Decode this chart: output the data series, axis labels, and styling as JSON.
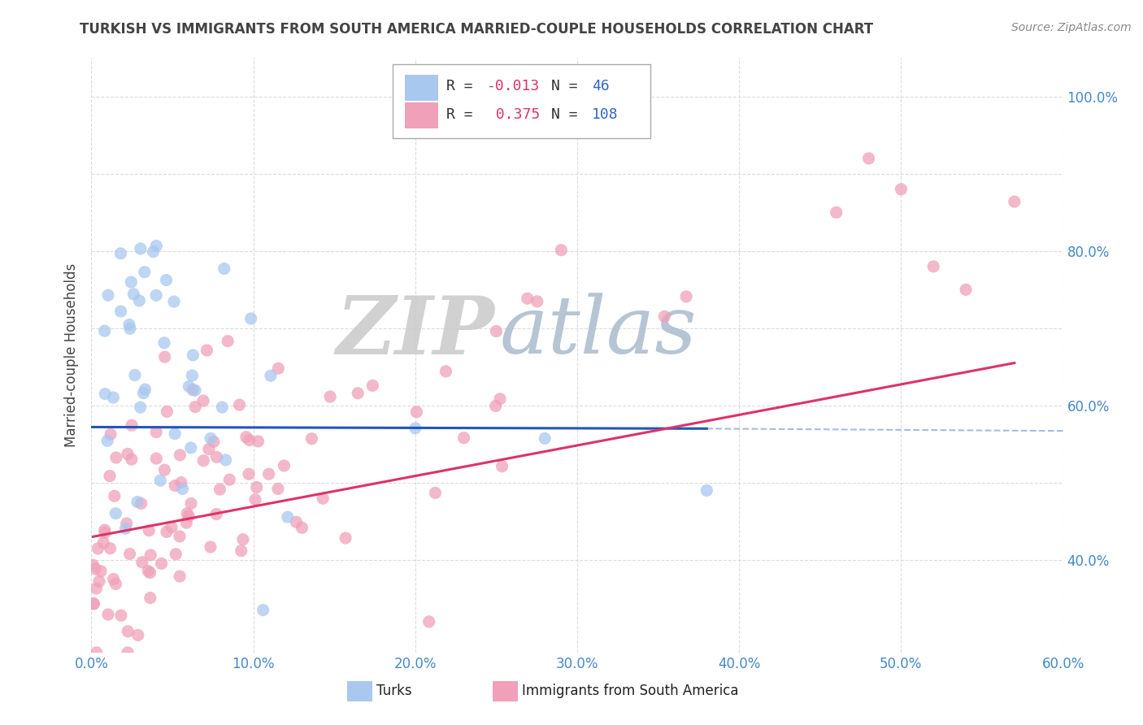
{
  "title": "TURKISH VS IMMIGRANTS FROM SOUTH AMERICA MARRIED-COUPLE HOUSEHOLDS CORRELATION CHART",
  "source": "Source: ZipAtlas.com",
  "ylabel": "Married-couple Households",
  "xlim": [
    0.0,
    0.6
  ],
  "ylim": [
    0.28,
    1.05
  ],
  "legend_labels": [
    "Turks",
    "Immigrants from South America"
  ],
  "blue_R": -0.013,
  "blue_N": 46,
  "pink_R": 0.375,
  "pink_N": 108,
  "blue_scatter_color": "#A8C8F0",
  "pink_scatter_color": "#F0A0B8",
  "blue_line_color": "#2255BB",
  "pink_line_color": "#DD3366",
  "blue_line_dashed_color": "#AABBDD",
  "title_color": "#444444",
  "source_color": "#888888",
  "axis_label_color": "#4488CC",
  "legend_r_neg_color": "#DD3366",
  "legend_r_pos_color": "#DD3366",
  "legend_n_color": "#3366CC",
  "legend_label_color": "#222222",
  "background_color": "#FFFFFF",
  "watermark_zip_color": "#BBCCDD",
  "watermark_atlas_color": "#AABBCC",
  "grid_color": "#CCCCCC",
  "grid_style": "--"
}
